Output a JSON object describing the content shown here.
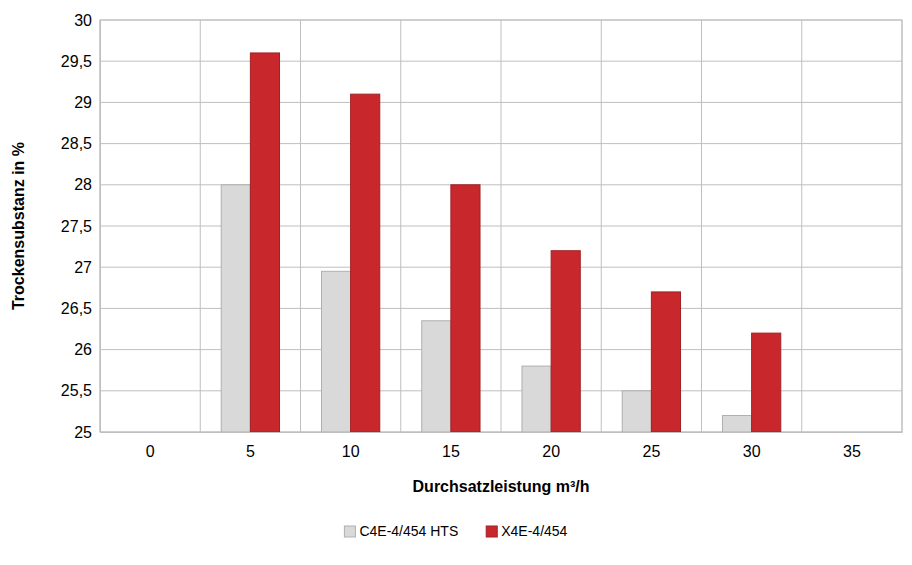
{
  "chart_data": {
    "type": "bar",
    "x_label": "Durchsatzleistung m³/h",
    "y_label": "Trockensubstanz in %",
    "categories": [
      "0",
      "5",
      "10",
      "15",
      "20",
      "25",
      "30",
      "35"
    ],
    "series": [
      {
        "name": "C4E-4/454 HTS",
        "color": "#d9d9d9",
        "values": [
          null,
          28,
          26.95,
          26.35,
          25.8,
          25.5,
          25.2,
          null
        ]
      },
      {
        "name": "X4E-4/454",
        "color": "#c8282c",
        "values": [
          null,
          29.6,
          29.1,
          28,
          27.2,
          26.7,
          26.2,
          null
        ]
      }
    ],
    "ylim": [
      25,
      30
    ],
    "yticks": [
      25,
      {
        "value": 25.5,
        "label": "25,5"
      },
      26,
      {
        "value": 26.5,
        "label": "26,5"
      },
      27,
      {
        "value": 27.5,
        "label": "27,5"
      },
      28,
      {
        "value": 28.5,
        "label": "28,5"
      },
      29,
      {
        "value": 29.5,
        "label": "29,5"
      },
      30
    ],
    "grid": true,
    "legend": "bottom"
  }
}
